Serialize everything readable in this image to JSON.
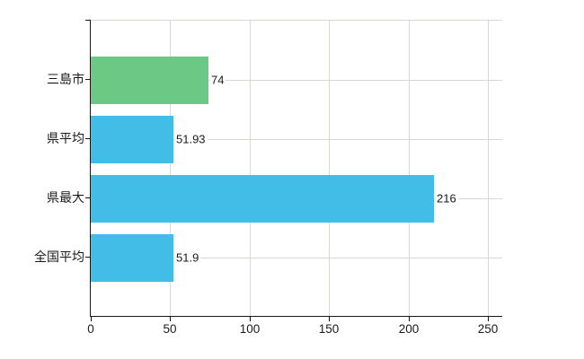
{
  "chart_data": {
    "type": "bar",
    "orientation": "horizontal",
    "title": "",
    "categories": [
      "三島市",
      "県平均",
      "県最大",
      "全国平均"
    ],
    "values": [
      74,
      51.93,
      216,
      51.9
    ],
    "value_labels": [
      "74",
      "51.93",
      "216",
      "51.9"
    ],
    "bar_colors": [
      "#6cc985",
      "#41bde8",
      "#41bde8",
      "#41bde8"
    ],
    "x_ticks": [
      0,
      50,
      100,
      150,
      200,
      250
    ],
    "x_tick_labels": [
      "0",
      "50",
      "100",
      "150",
      "200",
      "250"
    ],
    "xlim": [
      0,
      259
    ],
    "grid": true,
    "legend": false
  },
  "colors": {
    "highlight_bar": "#6cc985",
    "default_bar": "#41bde8",
    "gridline": "#d6d9d2",
    "axis": "#161616",
    "text": "#1a1a1a",
    "background": "#ffffff"
  }
}
